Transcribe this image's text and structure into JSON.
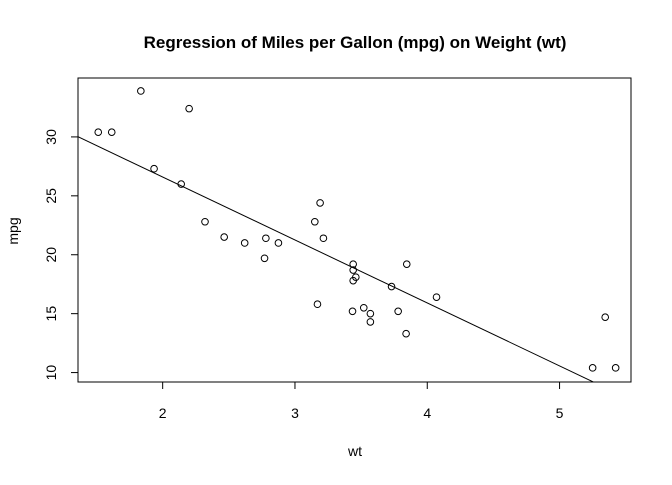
{
  "chart_data": {
    "type": "scatter",
    "title": "Regression of Miles per Gallon (mpg) on Weight (wt)",
    "xlabel": "wt",
    "ylabel": "mpg",
    "xlim": [
      1.36,
      5.54
    ],
    "ylim": [
      9.2,
      35.0
    ],
    "xticks": [
      2,
      3,
      4,
      5
    ],
    "yticks": [
      10,
      15,
      20,
      25,
      30
    ],
    "series": [
      {
        "points": [
          [
            2.62,
            21.0
          ],
          [
            2.875,
            21.0
          ],
          [
            2.32,
            22.8
          ],
          [
            3.215,
            21.4
          ],
          [
            3.44,
            18.7
          ],
          [
            3.46,
            18.1
          ],
          [
            3.57,
            14.3
          ],
          [
            3.19,
            24.4
          ],
          [
            3.15,
            22.8
          ],
          [
            3.44,
            19.2
          ],
          [
            3.44,
            17.8
          ],
          [
            4.07,
            16.4
          ],
          [
            3.73,
            17.3
          ],
          [
            3.78,
            15.2
          ],
          [
            5.25,
            10.4
          ],
          [
            5.424,
            10.4
          ],
          [
            5.345,
            14.7
          ],
          [
            2.2,
            32.4
          ],
          [
            1.615,
            30.4
          ],
          [
            1.835,
            33.9
          ],
          [
            2.465,
            21.5
          ],
          [
            3.52,
            15.5
          ],
          [
            3.435,
            15.2
          ],
          [
            3.84,
            13.3
          ],
          [
            3.845,
            19.2
          ],
          [
            1.935,
            27.3
          ],
          [
            2.14,
            26.0
          ],
          [
            1.513,
            30.4
          ],
          [
            3.17,
            15.8
          ],
          [
            2.77,
            19.7
          ],
          [
            3.57,
            15.0
          ],
          [
            2.78,
            21.4
          ]
        ]
      }
    ],
    "regression_line": {
      "intercept": 37.285,
      "slope": -5.344
    }
  }
}
